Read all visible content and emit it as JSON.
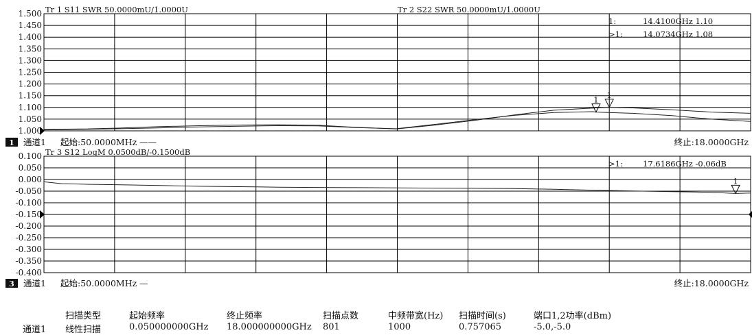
{
  "chart_data": [
    {
      "type": "line",
      "trace_headers": [
        "Tr 1  S11 SWR 50.0000mU/1.0000U",
        "Tr 2  S22 SWR 50.0000mU/1.0000U"
      ],
      "y_ticks": [
        "1.500",
        "1.450",
        "1.400",
        "1.350",
        "1.300",
        "1.250",
        "1.200",
        "1.150",
        "1.100",
        "1.050",
        "1.000"
      ],
      "ylim": [
        1.0,
        1.5
      ],
      "xlim_ghz": [
        0.05,
        18.0
      ],
      "series": [
        {
          "x": [
            0.05,
            1,
            2,
            3,
            4,
            5,
            6,
            7,
            8,
            9,
            10,
            11,
            12,
            13,
            14,
            14.41,
            15,
            16,
            17,
            18
          ],
          "y": [
            1.006,
            1.008,
            1.012,
            1.018,
            1.022,
            1.025,
            1.026,
            1.024,
            1.015,
            1.008,
            1.025,
            1.045,
            1.068,
            1.088,
            1.097,
            1.1,
            1.098,
            1.09,
            1.08,
            1.075
          ]
        },
        {
          "x": [
            0.05,
            1,
            2,
            3,
            4,
            5,
            6,
            7,
            8,
            9,
            10,
            11,
            12,
            13,
            14,
            14.0734,
            15,
            16,
            17,
            18
          ],
          "y": [
            1.004,
            1.006,
            1.009,
            1.013,
            1.017,
            1.02,
            1.022,
            1.021,
            1.014,
            1.009,
            1.028,
            1.048,
            1.066,
            1.078,
            1.082,
            1.08,
            1.075,
            1.065,
            1.05,
            1.04
          ]
        }
      ],
      "markers": [
        {
          "label": "1",
          "x": 14.0734,
          "y": 1.08,
          "readout_prefix": ">1:",
          "readout": "14.0734GHz 1.08"
        },
        {
          "label": "1",
          "x": 14.41,
          "y": 1.1,
          "readout_prefix": "1:",
          "readout": "14.4100GHz 1.10"
        }
      ],
      "channel_badge": "1",
      "channel": "通道1",
      "start": "起始:50.0000MHz",
      "start_suffix": "——",
      "stop": "终止:18.0000GHz"
    },
    {
      "type": "line",
      "trace_headers": [
        "Tr 3  S12 LogM 0.0500dB/-0.1500dB"
      ],
      "y_ticks": [
        "0.100",
        "0.050",
        "0.000",
        "-0.050",
        "-0.100",
        "-0.150",
        "-0.200",
        "-0.250",
        "-0.300",
        "-0.350",
        "-0.400"
      ],
      "ylim": [
        -0.4,
        0.1
      ],
      "xlim_ghz": [
        0.05,
        18.0
      ],
      "series": [
        {
          "x": [
            0.05,
            0.5,
            1,
            2,
            3,
            4,
            5,
            6,
            7,
            8,
            9,
            10,
            11,
            12,
            13,
            14,
            15,
            16,
            17,
            17.6186,
            18
          ],
          "y": [
            -0.01,
            -0.018,
            -0.02,
            -0.023,
            -0.026,
            -0.029,
            -0.031,
            -0.033,
            -0.034,
            -0.035,
            -0.036,
            -0.037,
            -0.038,
            -0.039,
            -0.042,
            -0.046,
            -0.049,
            -0.052,
            -0.055,
            -0.06,
            -0.058
          ]
        }
      ],
      "markers": [
        {
          "label": "1",
          "x": 17.6186,
          "y": -0.06,
          "readout_prefix": ">1:",
          "readout": "17.6186GHz -0.06dB"
        }
      ],
      "channel_badge": "3",
      "channel": "通道1",
      "start": "起始:50.0000MHz",
      "start_suffix": "—",
      "stop": "终止:18.0000GHz"
    }
  ],
  "summary": {
    "headers": [
      "扫描类型",
      "起始频率",
      "终止频率",
      "扫描点数",
      "中频带宽(Hz)",
      "扫描时间(s)",
      "端口1,2功率(dBm)"
    ],
    "row_label": "通道1",
    "values": [
      "线性扫描",
      "0.050000000GHz",
      "18.000000000GHz",
      "801",
      "1000",
      "0.757065",
      "-5.0,-5.0"
    ]
  }
}
